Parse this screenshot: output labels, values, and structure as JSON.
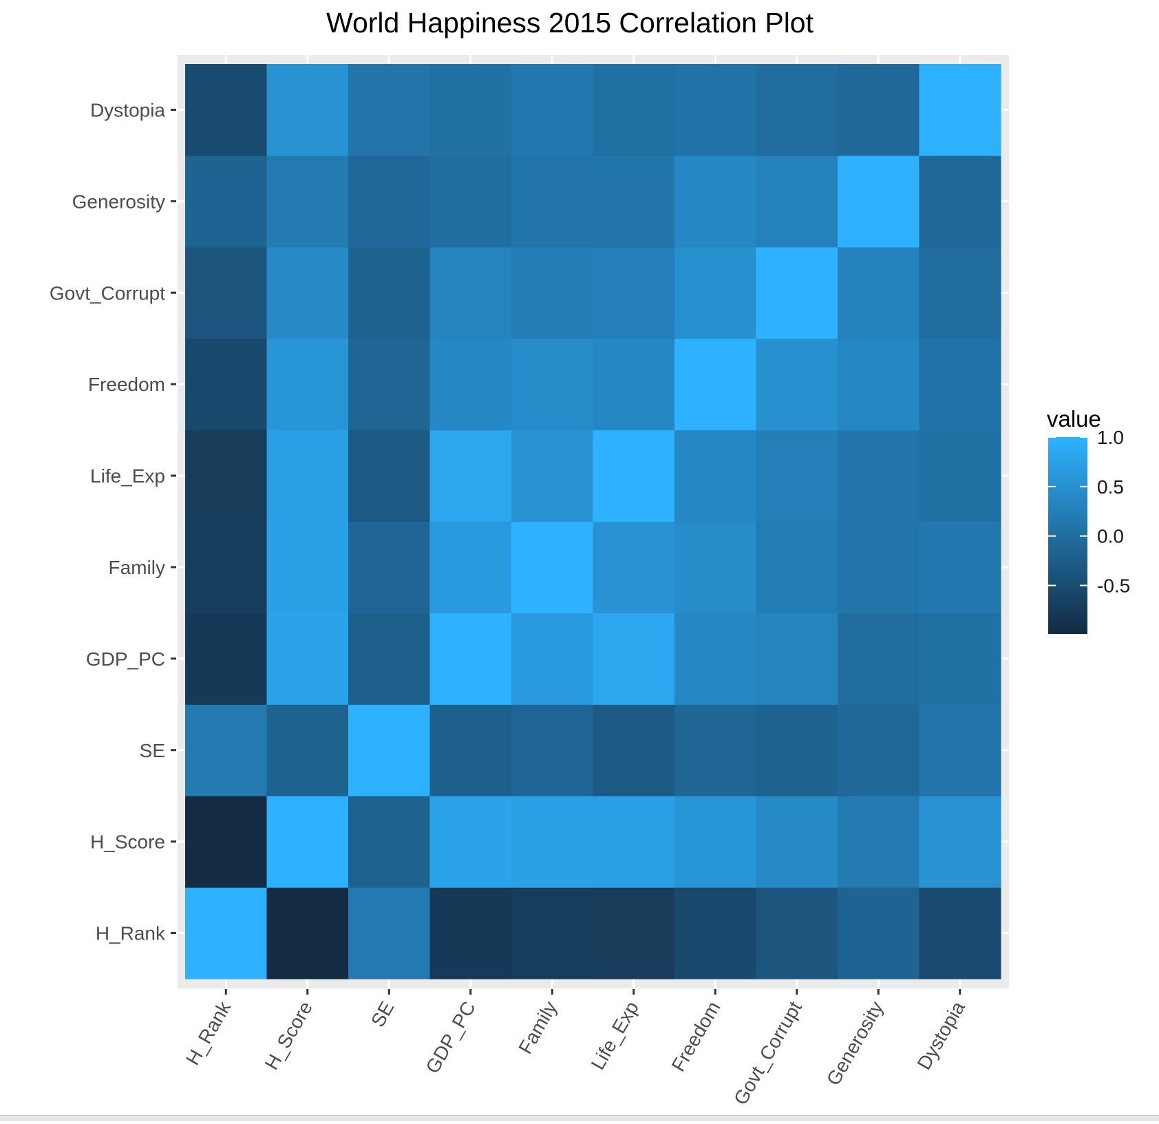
{
  "chart_data": {
    "type": "heatmap",
    "title": "World Happiness 2015 Correlation Plot",
    "xlabel": "",
    "ylabel": "",
    "x_categories": [
      "H_Rank",
      "H_Score",
      "SE",
      "GDP_PC",
      "Family",
      "Life_Exp",
      "Freedom",
      "Govt_Corrupt",
      "Generosity",
      "Dystopia"
    ],
    "y_categories": [
      "H_Rank",
      "H_Score",
      "SE",
      "GDP_PC",
      "Family",
      "Life_Exp",
      "Freedom",
      "Govt_Corrupt",
      "Generosity",
      "Dystopia"
    ],
    "values": [
      [
        1.0,
        -0.99,
        0.16,
        -0.79,
        -0.73,
        -0.74,
        -0.56,
        -0.37,
        -0.16,
        -0.52
      ],
      [
        -0.99,
        1.0,
        -0.18,
        0.78,
        0.74,
        0.72,
        0.57,
        0.4,
        0.18,
        0.53
      ],
      [
        0.16,
        -0.18,
        1.0,
        -0.22,
        -0.12,
        -0.31,
        -0.13,
        -0.18,
        -0.09,
        0.08
      ],
      [
        -0.79,
        0.78,
        -0.22,
        1.0,
        0.65,
        0.82,
        0.37,
        0.31,
        -0.01,
        0.04
      ],
      [
        -0.73,
        0.74,
        -0.12,
        0.65,
        1.0,
        0.53,
        0.44,
        0.21,
        0.09,
        0.15
      ],
      [
        -0.74,
        0.72,
        -0.31,
        0.82,
        0.53,
        1.0,
        0.36,
        0.25,
        0.11,
        0.02
      ],
      [
        -0.56,
        0.57,
        -0.13,
        0.37,
        0.44,
        0.36,
        1.0,
        0.49,
        0.37,
        0.06
      ],
      [
        -0.37,
        0.4,
        -0.18,
        0.31,
        0.21,
        0.25,
        0.49,
        1.0,
        0.28,
        -0.03
      ],
      [
        -0.16,
        0.18,
        -0.09,
        -0.01,
        0.09,
        0.11,
        0.37,
        0.28,
        1.0,
        -0.1
      ],
      [
        -0.52,
        0.53,
        0.08,
        0.04,
        0.15,
        0.02,
        0.06,
        -0.03,
        -0.1,
        1.0
      ]
    ],
    "value_range": [
      -1.0,
      1.0
    ],
    "color_low": "#132B43",
    "color_high": "#2EB2FF",
    "legend": {
      "title": "value",
      "placement": "right",
      "ticks": [
        1.0,
        0.5,
        0.0,
        -0.5
      ],
      "tick_labels": [
        "1.0",
        "0.5",
        "0.0",
        "-0.5"
      ]
    },
    "grid": true
  }
}
